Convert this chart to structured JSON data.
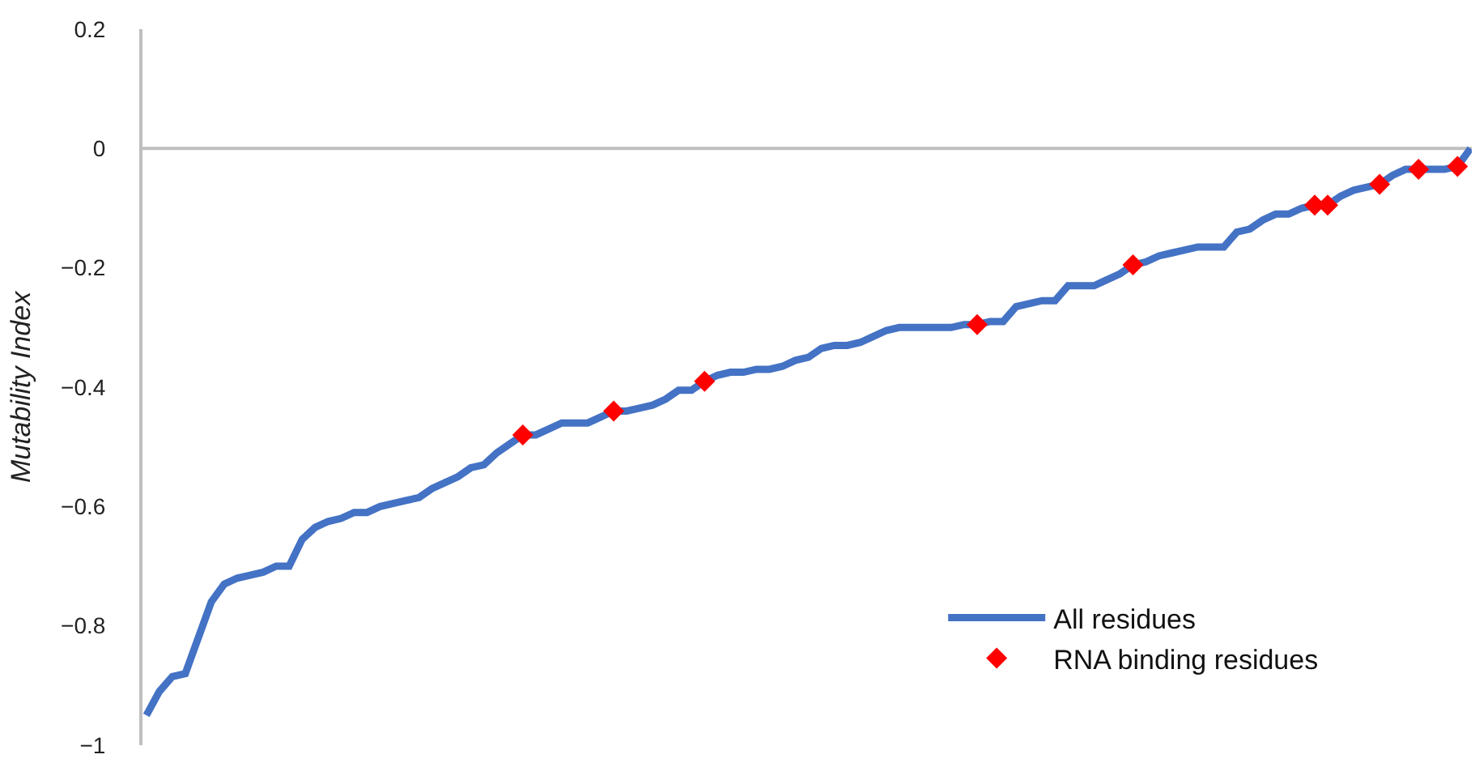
{
  "chart_data": {
    "type": "line",
    "ylabel": "Mutability Index",
    "categories": [
      null,
      null,
      null,
      null,
      null,
      null,
      null,
      null,
      null,
      null,
      null,
      null,
      null,
      null,
      null,
      null,
      null,
      null,
      null,
      null,
      null,
      null,
      null,
      null,
      null,
      null,
      null,
      null,
      null,
      null,
      null,
      null,
      null,
      null,
      null,
      null,
      null,
      null,
      null,
      null,
      null,
      null,
      null,
      null,
      null,
      null,
      null,
      null,
      null,
      null,
      null,
      null,
      null,
      null,
      null,
      null,
      null,
      null,
      null,
      null,
      null,
      null,
      null,
      null,
      null,
      null,
      null,
      null,
      null,
      null,
      null,
      null,
      null,
      null,
      null,
      null,
      null,
      null,
      null,
      null,
      null,
      null,
      null,
      null,
      null,
      null,
      null,
      null,
      null,
      null,
      null,
      null,
      null,
      null,
      null,
      null,
      null,
      null,
      null,
      null,
      null,
      null,
      null
    ],
    "series": [
      {
        "name": "All residues",
        "color": "#4472c4",
        "line_style": "solid",
        "marker": "none",
        "values": [
          -0.95,
          -0.91,
          -0.885,
          -0.88,
          -0.82,
          -0.76,
          -0.73,
          -0.72,
          -0.715,
          -0.71,
          -0.7,
          -0.7,
          -0.655,
          -0.635,
          -0.625,
          -0.62,
          -0.61,
          -0.61,
          -0.6,
          -0.595,
          -0.59,
          -0.585,
          -0.57,
          -0.56,
          -0.55,
          -0.535,
          -0.53,
          -0.51,
          -0.495,
          -0.48,
          -0.48,
          -0.47,
          -0.46,
          -0.46,
          -0.46,
          -0.45,
          -0.44,
          -0.44,
          -0.435,
          -0.43,
          -0.42,
          -0.405,
          -0.405,
          -0.39,
          -0.38,
          -0.375,
          -0.375,
          -0.37,
          -0.37,
          -0.365,
          -0.355,
          -0.35,
          -0.335,
          -0.33,
          -0.33,
          -0.325,
          -0.315,
          -0.305,
          -0.3,
          -0.3,
          -0.3,
          -0.3,
          -0.3,
          -0.295,
          -0.295,
          -0.29,
          -0.29,
          -0.265,
          -0.26,
          -0.255,
          -0.255,
          -0.23,
          -0.23,
          -0.23,
          -0.22,
          -0.21,
          -0.195,
          -0.19,
          -0.18,
          -0.175,
          -0.17,
          -0.165,
          -0.165,
          -0.165,
          -0.14,
          -0.135,
          -0.12,
          -0.11,
          -0.11,
          -0.1,
          -0.095,
          -0.095,
          -0.08,
          -0.07,
          -0.065,
          -0.06,
          -0.045,
          -0.035,
          -0.035,
          -0.035,
          -0.035,
          -0.03,
          0
        ]
      },
      {
        "name": "RNA binding residues",
        "type": "scatter",
        "color": "#ff0000",
        "marker": "diamond",
        "values": [
          null,
          null,
          null,
          null,
          null,
          null,
          null,
          null,
          null,
          null,
          null,
          null,
          null,
          null,
          null,
          null,
          null,
          null,
          null,
          null,
          null,
          null,
          null,
          null,
          null,
          null,
          null,
          null,
          null,
          -0.48,
          null,
          null,
          null,
          null,
          null,
          null,
          -0.44,
          null,
          null,
          null,
          null,
          null,
          null,
          -0.39,
          null,
          null,
          null,
          null,
          null,
          null,
          null,
          null,
          null,
          null,
          null,
          null,
          null,
          null,
          null,
          null,
          null,
          null,
          null,
          null,
          -0.295,
          null,
          null,
          null,
          null,
          null,
          null,
          null,
          null,
          null,
          null,
          null,
          -0.195,
          null,
          null,
          null,
          null,
          null,
          null,
          null,
          null,
          null,
          null,
          null,
          null,
          null,
          -0.095,
          -0.095,
          null,
          null,
          null,
          -0.06,
          null,
          null,
          -0.035,
          null,
          null,
          -0.03,
          null
        ]
      }
    ],
    "ylim": [
      -1,
      0.2
    ],
    "yticks": [
      0.2,
      0,
      -0.2,
      -0.4,
      -0.6,
      -0.8,
      -1
    ],
    "ref_lines": [
      {
        "axis": "y",
        "value": 0,
        "color": "#bfbfbf",
        "line_style": "solid"
      }
    ],
    "grid": false,
    "legend": "bottom right",
    "tick_labels": "y"
  }
}
